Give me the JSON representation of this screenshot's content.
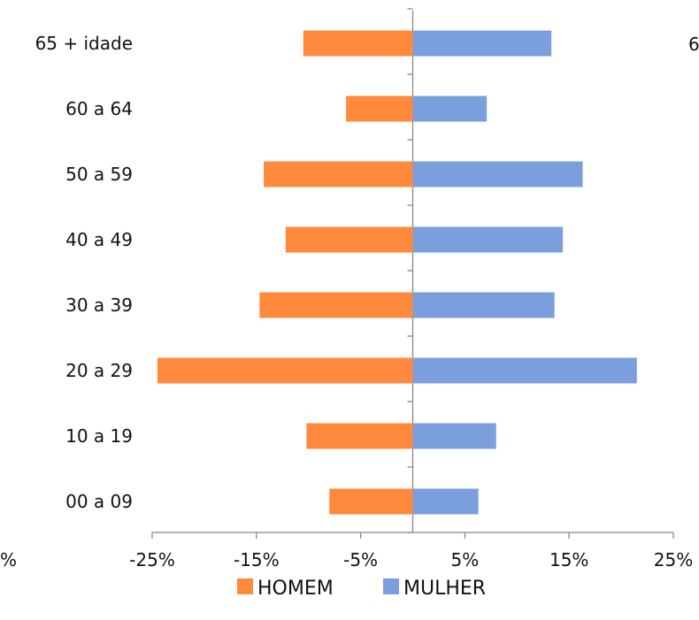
{
  "chart_data": {
    "type": "bar",
    "orientation": "horizontal",
    "stacked": false,
    "categories": [
      "00 a 09",
      "10 a 19",
      "20 a 29",
      "30 a 39",
      "40 a 49",
      "50 a 59",
      "60 a 64",
      "65 + idade"
    ],
    "series": [
      {
        "name": "HOMEM",
        "color": "#ff8a3d",
        "values": [
          -8,
          -10.2,
          -24.5,
          -14.7,
          -12.2,
          -14.3,
          -6.4,
          -10.5
        ]
      },
      {
        "name": "MULHER",
        "color": "#7b9fdc",
        "values": [
          6.3,
          8,
          21.5,
          13.6,
          14.4,
          16.3,
          7.1,
          13.3
        ]
      }
    ],
    "xlim": [
      -25,
      25
    ],
    "xticks": [
      "-25%",
      "-15%",
      "-5%",
      "5%",
      "15%",
      "25%"
    ],
    "xlabel": "",
    "ylabel": "",
    "title": "",
    "grid": false,
    "legend": {
      "position": "bottom",
      "entries": [
        "HOMEM",
        "MULHER"
      ]
    },
    "clipped_text": {
      "left_edge": "%",
      "right_edge": "6"
    }
  }
}
